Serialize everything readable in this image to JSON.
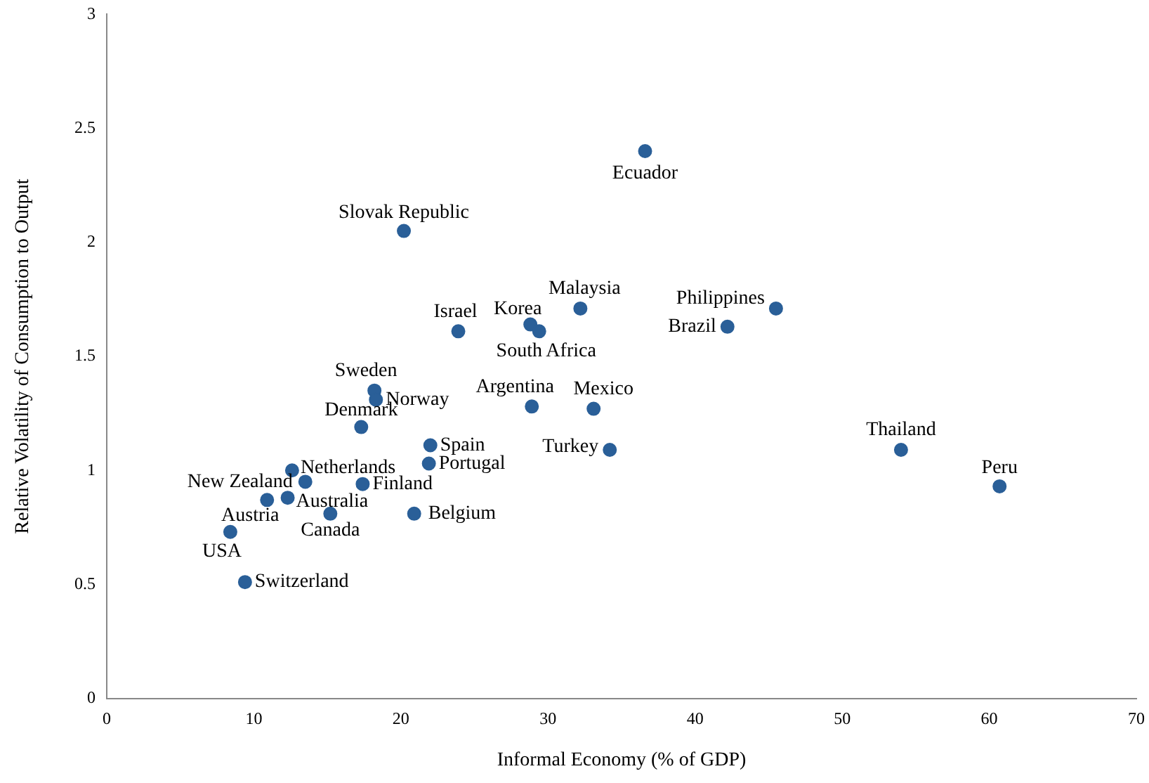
{
  "chart_data": {
    "type": "scatter",
    "xlabel": "Informal Economy (% of GDP)",
    "ylabel": "Relative Volatility of Consumption to Output",
    "xlim": [
      0,
      70
    ],
    "xticks": [
      0,
      10,
      20,
      30,
      40,
      50,
      60,
      70
    ],
    "ylim": [
      0,
      3
    ],
    "yticks": [
      0,
      0.5,
      1,
      1.5,
      2,
      2.5,
      3
    ],
    "grid": false,
    "legend": false,
    "marker": "circle",
    "series": [
      {
        "color": "#2a5f98",
        "x": [
          36.6,
          20.2,
          32.2,
          28.8,
          29.4,
          23.9,
          45.5,
          42.2,
          28.9,
          33.1,
          34.2,
          54.0,
          60.7,
          18.2,
          18.3,
          17.3,
          22.0,
          21.9,
          20.9,
          17.4,
          12.6,
          13.5,
          12.3,
          15.2,
          10.9,
          8.4,
          9.4
        ],
        "values": [
          2.4,
          2.05,
          1.71,
          1.64,
          1.61,
          1.61,
          1.71,
          1.63,
          1.28,
          1.27,
          1.09,
          1.09,
          0.93,
          1.35,
          1.31,
          1.19,
          1.11,
          1.03,
          0.81,
          0.94,
          1.0,
          0.95,
          0.88,
          0.81,
          0.87,
          0.73,
          0.51
        ]
      }
    ],
    "annotations": [
      {
        "text": "Ecuador",
        "x": 36.6,
        "y": 2.4
      },
      {
        "text": "Slovak Republic",
        "x": 20.2,
        "y": 2.05
      },
      {
        "text": "Malaysia",
        "x": 32.2,
        "y": 1.71
      },
      {
        "text": "Korea",
        "x": 28.8,
        "y": 1.64
      },
      {
        "text": "South Africa",
        "x": 29.4,
        "y": 1.61
      },
      {
        "text": "Israel",
        "x": 23.9,
        "y": 1.61
      },
      {
        "text": "Philippines",
        "x": 45.5,
        "y": 1.71
      },
      {
        "text": "Brazil",
        "x": 42.2,
        "y": 1.63
      },
      {
        "text": "Argentina",
        "x": 28.9,
        "y": 1.28
      },
      {
        "text": "Mexico",
        "x": 33.1,
        "y": 1.27
      },
      {
        "text": "Turkey",
        "x": 34.2,
        "y": 1.09
      },
      {
        "text": "Thailand",
        "x": 54.0,
        "y": 1.09
      },
      {
        "text": "Peru",
        "x": 60.7,
        "y": 0.93
      },
      {
        "text": "Sweden",
        "x": 18.2,
        "y": 1.35
      },
      {
        "text": "Norway",
        "x": 18.3,
        "y": 1.31
      },
      {
        "text": "Denmark",
        "x": 17.3,
        "y": 1.19
      },
      {
        "text": "Spain",
        "x": 22.0,
        "y": 1.11
      },
      {
        "text": "Portugal",
        "x": 21.9,
        "y": 1.03
      },
      {
        "text": "Belgium",
        "x": 20.9,
        "y": 0.81
      },
      {
        "text": "Finland",
        "x": 17.4,
        "y": 0.94
      },
      {
        "text": "Netherlands",
        "x": 12.6,
        "y": 1.0
      },
      {
        "text": "New Zealand",
        "x": 13.5,
        "y": 0.95
      },
      {
        "text": "Australia",
        "x": 12.3,
        "y": 0.88
      },
      {
        "text": "Canada",
        "x": 15.2,
        "y": 0.81
      },
      {
        "text": "Austria",
        "x": 10.9,
        "y": 0.87
      },
      {
        "text": "USA",
        "x": 8.4,
        "y": 0.73
      },
      {
        "text": "Switzerland",
        "x": 9.4,
        "y": 0.51
      }
    ]
  }
}
